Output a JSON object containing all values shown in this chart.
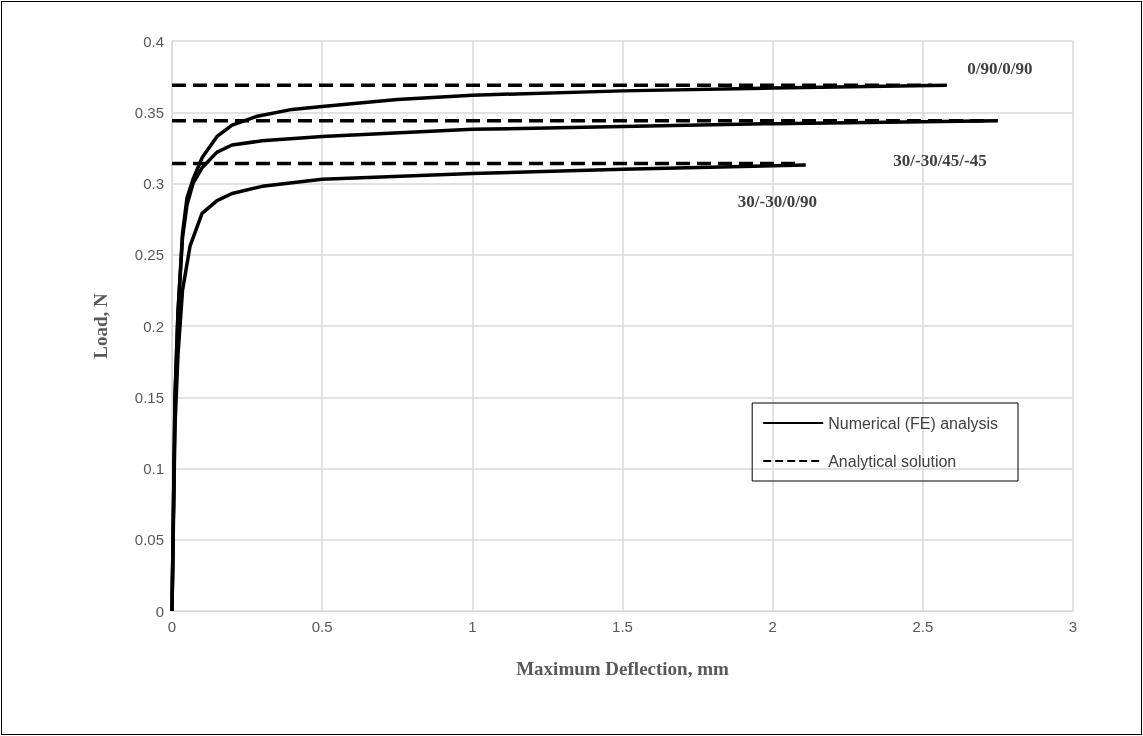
{
  "chart_data": {
    "type": "line",
    "xlabel": "Maximum Deflection, mm",
    "ylabel": "Load, N",
    "xlim": [
      0,
      3
    ],
    "xticks": [
      0,
      0.5,
      1,
      1.5,
      2,
      2.5,
      3
    ],
    "ylim": [
      0,
      0.4
    ],
    "yticks": [
      0,
      0.05,
      0.1,
      0.15,
      0.2,
      0.25,
      0.3,
      0.35,
      0.4
    ],
    "grid": true,
    "legend": "bottom right",
    "marker": "none",
    "series": [
      {
        "name": "Numerical (FE) analysis",
        "color": "#000000",
        "line_style": "solid",
        "x": [
          0,
          0.01,
          0.02,
          0.035,
          0.05,
          0.07,
          0.1,
          0.15,
          0.2,
          0.28,
          0.4,
          0.5,
          0.75,
          1,
          1.5,
          2,
          2.58
        ],
        "values": [
          0,
          0.15,
          0.21,
          0.265,
          0.29,
          0.303,
          0.318,
          0.333,
          0.341,
          0.347,
          0.352,
          0.354,
          0.359,
          0.362,
          0.365,
          0.367,
          0.369
        ]
      },
      {
        "color": "#000000",
        "line_style": "solid",
        "x": [
          0,
          0.01,
          0.02,
          0.035,
          0.05,
          0.07,
          0.1,
          0.15,
          0.2,
          0.3,
          0.5,
          1,
          1.5,
          2,
          2.75
        ],
        "values": [
          0,
          0.15,
          0.21,
          0.262,
          0.285,
          0.3,
          0.311,
          0.322,
          0.327,
          0.33,
          0.333,
          0.338,
          0.34,
          0.342,
          0.344
        ]
      },
      {
        "color": "#000000",
        "line_style": "solid",
        "x": [
          0,
          0.01,
          0.02,
          0.035,
          0.06,
          0.1,
          0.15,
          0.2,
          0.3,
          0.5,
          1,
          1.5,
          2.11
        ],
        "values": [
          0,
          0.13,
          0.18,
          0.225,
          0.256,
          0.279,
          0.288,
          0.293,
          0.298,
          0.303,
          0.307,
          0.31,
          0.313
        ]
      },
      {
        "name": "Analytical solution",
        "color": "#000000",
        "line_style": "dashed",
        "x": [
          0,
          2.53
        ],
        "values": [
          0.369,
          0.369
        ]
      },
      {
        "color": "#000000",
        "line_style": "dashed",
        "x": [
          0,
          2.72
        ],
        "values": [
          0.344,
          0.344
        ]
      },
      {
        "color": "#000000",
        "line_style": "dashed",
        "x": [
          0,
          2.09
        ],
        "values": [
          0.314,
          0.314
        ]
      }
    ],
    "annotations": [
      "0/90/0/90",
      "30/-30/45/-45",
      "30/-30/0/90"
    ]
  }
}
